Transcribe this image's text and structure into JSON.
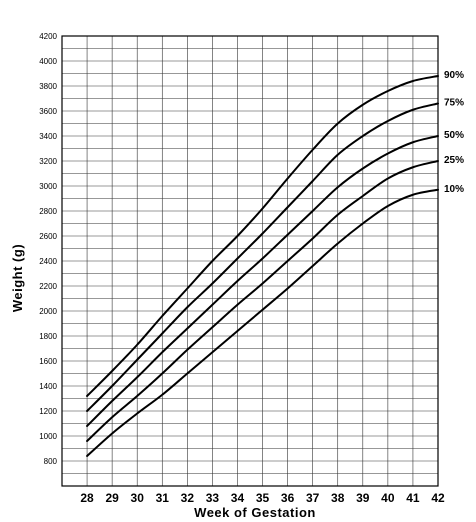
{
  "chart_data": {
    "type": "line",
    "title": "",
    "xlabel": "Week of Gestation",
    "ylabel": "Weight (g)",
    "xlim": [
      27,
      42
    ],
    "ylim": [
      600,
      4200
    ],
    "x": [
      28,
      29,
      30,
      31,
      32,
      33,
      34,
      35,
      36,
      37,
      38,
      39,
      40,
      41,
      42
    ],
    "x_ticks": [
      "28",
      "29",
      "30",
      "31",
      "32",
      "33",
      "34",
      "35",
      "36",
      "37",
      "38",
      "39",
      "40",
      "41",
      "42"
    ],
    "y_ticks": [
      "800",
      "1000",
      "1200",
      "1400",
      "1600",
      "1800",
      "2000",
      "2200",
      "2400",
      "2600",
      "2800",
      "3000",
      "3200",
      "3400",
      "3600",
      "3800",
      "4000",
      "4200"
    ],
    "grid": true,
    "series": [
      {
        "name": "90%",
        "values": [
          1320,
          1520,
          1730,
          1960,
          2180,
          2400,
          2600,
          2820,
          3060,
          3290,
          3500,
          3650,
          3760,
          3840,
          3880
        ]
      },
      {
        "name": "75%",
        "values": [
          1200,
          1400,
          1610,
          1820,
          2030,
          2220,
          2420,
          2620,
          2830,
          3040,
          3250,
          3400,
          3520,
          3610,
          3660
        ]
      },
      {
        "name": "50%",
        "values": [
          1080,
          1280,
          1470,
          1670,
          1860,
          2050,
          2240,
          2420,
          2610,
          2800,
          2990,
          3140,
          3260,
          3350,
          3400
        ]
      },
      {
        "name": "25%",
        "values": [
          960,
          1150,
          1320,
          1500,
          1690,
          1870,
          2050,
          2220,
          2400,
          2580,
          2770,
          2920,
          3060,
          3150,
          3200
        ]
      },
      {
        "name": "10%",
        "values": [
          840,
          1020,
          1180,
          1330,
          1500,
          1670,
          1840,
          2010,
          2180,
          2360,
          2540,
          2700,
          2840,
          2930,
          2970
        ]
      }
    ]
  }
}
